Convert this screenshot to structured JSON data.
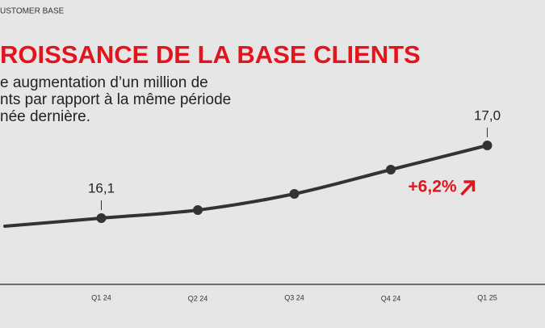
{
  "chart_data": {
    "type": "line",
    "kicker": "USTOMER BASE",
    "title": "ROISSANCE DE LA BASE  CLIENTS",
    "subtitle_lines": [
      "e augmentation d’un million de",
      "nts par rapport à la même période",
      "née dernière."
    ],
    "categories": [
      null,
      "Q1 24",
      "Q2 24",
      "Q3 24",
      "Q4 24",
      "Q1 25"
    ],
    "values": [
      16.0,
      16.1,
      16.2,
      16.4,
      16.7,
      17.0
    ],
    "value_labels": [
      null,
      "16,1",
      null,
      null,
      null,
      "17,0"
    ],
    "ylim": [
      15.4,
      17.3
    ],
    "color": "#333333",
    "annotation": "+6,2%",
    "annotation_color": "#e3141b",
    "title_color": "#e3141b"
  }
}
